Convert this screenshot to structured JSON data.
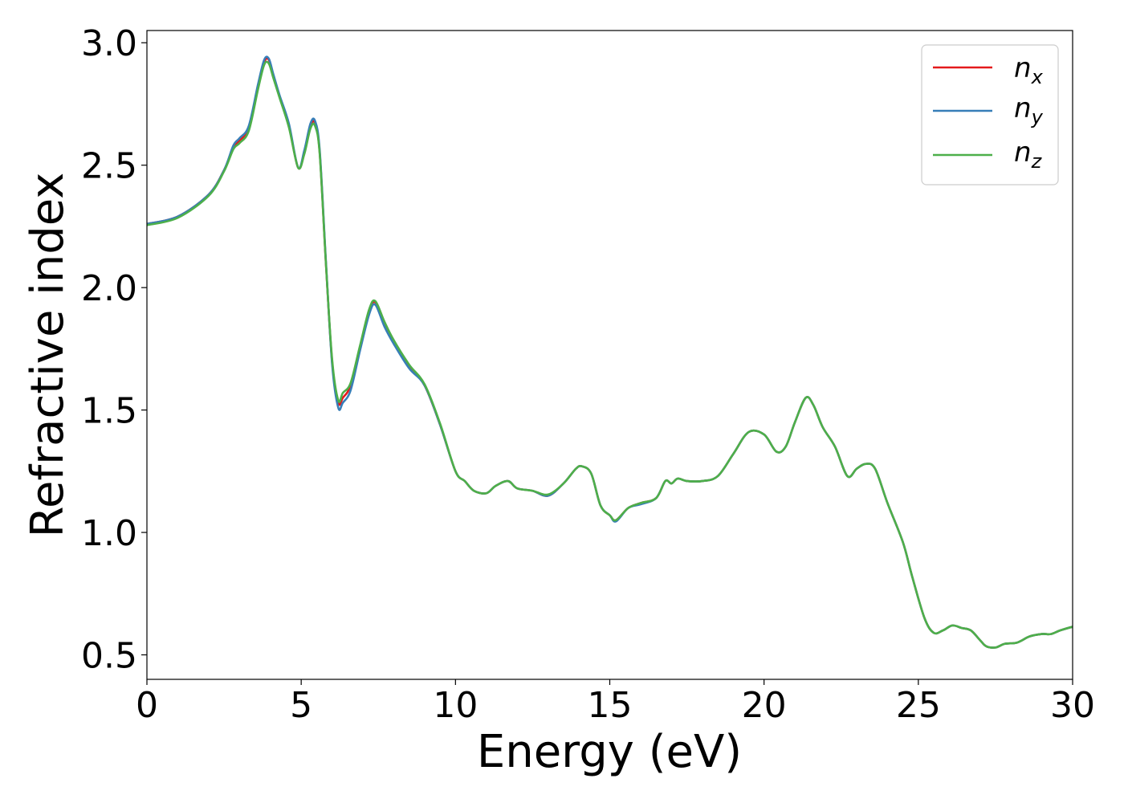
{
  "chart_data": {
    "type": "line",
    "title": "",
    "xlabel": "Energy (eV)",
    "ylabel": "Refractive index",
    "xlim": [
      0,
      30
    ],
    "ylim": [
      0.4,
      3.05
    ],
    "xticks": [
      0,
      5,
      10,
      15,
      20,
      25,
      30
    ],
    "xtick_labels": [
      "0",
      "5",
      "10",
      "15",
      "20",
      "25",
      "30"
    ],
    "yticks": [
      0.5,
      1.0,
      1.5,
      2.0,
      2.5,
      3.0
    ],
    "ytick_labels": [
      "0.5",
      "1.0",
      "1.5",
      "2.0",
      "2.5",
      "3.0"
    ],
    "grid": false,
    "legend_position": "top-right",
    "legend": [
      {
        "base": "n",
        "sub": "x"
      },
      {
        "base": "n",
        "sub": "y"
      },
      {
        "base": "n",
        "sub": "z"
      }
    ],
    "colors": {
      "nx": "#e41a1c",
      "ny": "#377eb8",
      "nz": "#4daf4a"
    },
    "series": [
      {
        "key": "nx",
        "color": "#e41a1c",
        "x": [
          0,
          1,
          2,
          2.5,
          2.8,
          3.0,
          3.3,
          3.6,
          3.8,
          3.95,
          4.1,
          4.3,
          4.6,
          4.9,
          5.1,
          5.3,
          5.45,
          5.6,
          5.8,
          6.0,
          6.2,
          6.35,
          6.6,
          6.9,
          7.2,
          7.4,
          7.7,
          8.0,
          8.5,
          9.0,
          9.5,
          10.0,
          10.3,
          10.6,
          11.0,
          11.3,
          11.7,
          12.0,
          12.5,
          13.0,
          13.5,
          13.9,
          14.1,
          14.4,
          14.7,
          15.0,
          15.2,
          15.6,
          16.0,
          16.5,
          16.8,
          17.0,
          17.2,
          17.5,
          18.0,
          18.5,
          19.0,
          19.5,
          20.0,
          20.4,
          20.7,
          21.0,
          21.35,
          21.6,
          21.9,
          22.3,
          22.7,
          23.0,
          23.3,
          23.6,
          24.0,
          24.5,
          24.8,
          25.2,
          25.5,
          25.8,
          26.1,
          26.4,
          26.7,
          27.0,
          27.2,
          27.5,
          27.8,
          28.2,
          28.6,
          29.0,
          29.3,
          29.6,
          30.0
        ],
        "y": [
          2.26,
          2.29,
          2.38,
          2.48,
          2.57,
          2.6,
          2.65,
          2.82,
          2.92,
          2.93,
          2.86,
          2.78,
          2.66,
          2.49,
          2.55,
          2.66,
          2.67,
          2.55,
          2.1,
          1.7,
          1.53,
          1.55,
          1.6,
          1.75,
          1.9,
          1.94,
          1.85,
          1.78,
          1.68,
          1.6,
          1.44,
          1.25,
          1.21,
          1.17,
          1.16,
          1.19,
          1.21,
          1.18,
          1.17,
          1.15,
          1.2,
          1.26,
          1.27,
          1.24,
          1.11,
          1.07,
          1.05,
          1.1,
          1.12,
          1.14,
          1.21,
          1.2,
          1.22,
          1.21,
          1.21,
          1.23,
          1.32,
          1.41,
          1.4,
          1.33,
          1.35,
          1.45,
          1.55,
          1.52,
          1.43,
          1.35,
          1.23,
          1.26,
          1.28,
          1.26,
          1.12,
          0.96,
          0.82,
          0.65,
          0.59,
          0.6,
          0.62,
          0.61,
          0.6,
          0.56,
          0.535,
          0.53,
          0.545,
          0.55,
          0.575,
          0.585,
          0.585,
          0.6,
          0.615
        ]
      },
      {
        "key": "ny",
        "color": "#377eb8",
        "x": [
          0,
          1,
          2,
          2.5,
          2.8,
          3.0,
          3.3,
          3.6,
          3.8,
          3.95,
          4.1,
          4.3,
          4.6,
          4.9,
          5.1,
          5.3,
          5.45,
          5.6,
          5.8,
          6.0,
          6.2,
          6.35,
          6.6,
          6.9,
          7.2,
          7.4,
          7.7,
          8.0,
          8.5,
          9.0,
          9.5,
          10.0,
          10.3,
          10.6,
          11.0,
          11.3,
          11.7,
          12.0,
          12.5,
          13.0,
          13.5,
          13.9,
          14.1,
          14.4,
          14.7,
          15.0,
          15.2,
          15.6,
          16.0,
          16.5,
          16.8,
          17.0,
          17.2,
          17.5,
          18.0,
          18.5,
          19.0,
          19.5,
          20.0,
          20.4,
          20.7,
          21.0,
          21.35,
          21.6,
          21.9,
          22.3,
          22.7,
          23.0,
          23.3,
          23.6,
          24.0,
          24.5,
          24.8,
          25.2,
          25.5,
          25.8,
          26.1,
          26.4,
          26.7,
          27.0,
          27.2,
          27.5,
          27.8,
          28.2,
          28.6,
          29.0,
          29.3,
          29.6,
          30.0
        ],
        "y": [
          2.26,
          2.29,
          2.38,
          2.48,
          2.58,
          2.61,
          2.66,
          2.83,
          2.93,
          2.935,
          2.87,
          2.785,
          2.67,
          2.49,
          2.56,
          2.67,
          2.68,
          2.56,
          2.11,
          1.69,
          1.51,
          1.53,
          1.58,
          1.74,
          1.89,
          1.93,
          1.84,
          1.77,
          1.67,
          1.6,
          1.44,
          1.25,
          1.21,
          1.17,
          1.16,
          1.19,
          1.21,
          1.18,
          1.17,
          1.15,
          1.2,
          1.26,
          1.27,
          1.24,
          1.11,
          1.07,
          1.045,
          1.1,
          1.115,
          1.14,
          1.21,
          1.2,
          1.22,
          1.21,
          1.21,
          1.23,
          1.32,
          1.41,
          1.4,
          1.33,
          1.35,
          1.45,
          1.55,
          1.52,
          1.43,
          1.35,
          1.23,
          1.26,
          1.28,
          1.26,
          1.12,
          0.96,
          0.82,
          0.65,
          0.59,
          0.6,
          0.62,
          0.61,
          0.6,
          0.56,
          0.535,
          0.53,
          0.545,
          0.55,
          0.575,
          0.585,
          0.585,
          0.6,
          0.615
        ]
      },
      {
        "key": "nz",
        "color": "#4daf4a",
        "x": [
          0,
          1,
          2,
          2.5,
          2.8,
          3.0,
          3.3,
          3.6,
          3.8,
          3.95,
          4.1,
          4.3,
          4.6,
          4.9,
          5.1,
          5.3,
          5.45,
          5.6,
          5.8,
          6.0,
          6.2,
          6.35,
          6.6,
          6.9,
          7.2,
          7.4,
          7.7,
          8.0,
          8.5,
          9.0,
          9.5,
          10.0,
          10.3,
          10.6,
          11.0,
          11.3,
          11.7,
          12.0,
          12.5,
          13.0,
          13.5,
          13.9,
          14.1,
          14.4,
          14.7,
          15.0,
          15.2,
          15.6,
          16.0,
          16.5,
          16.8,
          17.0,
          17.2,
          17.5,
          18.0,
          18.5,
          19.0,
          19.5,
          20.0,
          20.4,
          20.7,
          21.0,
          21.35,
          21.6,
          21.9,
          22.3,
          22.7,
          23.0,
          23.3,
          23.6,
          24.0,
          24.5,
          24.8,
          25.2,
          25.5,
          25.8,
          26.1,
          26.4,
          26.7,
          27.0,
          27.2,
          27.5,
          27.8,
          28.2,
          28.6,
          29.0,
          29.3,
          29.6,
          30.0
        ],
        "y": [
          2.255,
          2.285,
          2.375,
          2.475,
          2.565,
          2.59,
          2.64,
          2.81,
          2.91,
          2.915,
          2.855,
          2.775,
          2.655,
          2.49,
          2.545,
          2.65,
          2.66,
          2.545,
          2.1,
          1.71,
          1.54,
          1.57,
          1.61,
          1.76,
          1.91,
          1.945,
          1.86,
          1.785,
          1.685,
          1.605,
          1.445,
          1.25,
          1.21,
          1.17,
          1.16,
          1.19,
          1.21,
          1.18,
          1.17,
          1.155,
          1.2,
          1.26,
          1.27,
          1.24,
          1.11,
          1.07,
          1.05,
          1.1,
          1.12,
          1.14,
          1.21,
          1.2,
          1.22,
          1.21,
          1.21,
          1.23,
          1.32,
          1.41,
          1.4,
          1.33,
          1.35,
          1.45,
          1.55,
          1.52,
          1.43,
          1.35,
          1.23,
          1.26,
          1.28,
          1.26,
          1.12,
          0.96,
          0.82,
          0.65,
          0.59,
          0.6,
          0.62,
          0.61,
          0.6,
          0.56,
          0.535,
          0.53,
          0.545,
          0.55,
          0.575,
          0.585,
          0.585,
          0.6,
          0.615
        ]
      }
    ]
  }
}
